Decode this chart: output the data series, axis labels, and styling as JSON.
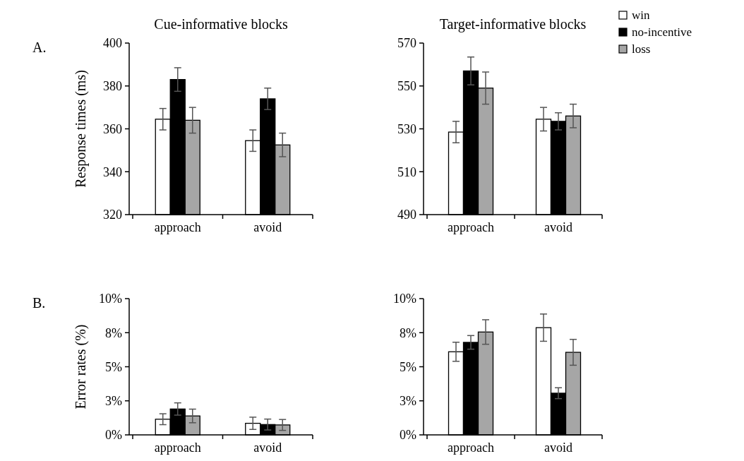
{
  "chart_data": [
    {
      "type": "bar",
      "title": "Cue-informative blocks",
      "ylabel": "Response times (ms)",
      "annotations": [
        "A."
      ],
      "categories": [
        "approach",
        "avoid"
      ],
      "ylim": [
        320,
        400
      ],
      "yticks": [
        320,
        340,
        360,
        380,
        400
      ],
      "legend": false,
      "series": [
        {
          "color": "#ffffff",
          "values": [
            364.5,
            354.5
          ],
          "errors": [
            5,
            5
          ]
        },
        {
          "color": "#000000",
          "values": [
            383,
            374
          ],
          "errors": [
            5.5,
            5
          ]
        },
        {
          "color": "#a6a6a6",
          "values": [
            364,
            352.5
          ],
          "errors": [
            6,
            5.5
          ]
        }
      ]
    },
    {
      "type": "bar",
      "title": "Target-informative blocks",
      "categories": [
        "approach",
        "avoid"
      ],
      "ylim": [
        490,
        570
      ],
      "yticks": [
        490,
        510,
        530,
        550,
        570
      ],
      "legend": "right",
      "series": [
        {
          "name": "win",
          "color": "#ffffff",
          "values": [
            528.5,
            534.5
          ],
          "errors": [
            5,
            5.5
          ]
        },
        {
          "name": "no-incentive",
          "color": "#000000",
          "values": [
            557,
            533.5
          ],
          "errors": [
            6.5,
            4
          ]
        },
        {
          "name": "loss",
          "color": "#a6a6a6",
          "values": [
            549,
            536
          ],
          "errors": [
            7.5,
            5.5
          ]
        }
      ]
    },
    {
      "type": "bar",
      "ylabel": "Error rates (%)",
      "annotations": [
        "B."
      ],
      "categories": [
        "approach",
        "avoid"
      ],
      "ylim": [
        0,
        10
      ],
      "yticks": [
        {
          "value": 0,
          "label": "0%"
        },
        {
          "value": 2.5,
          "label": "3%"
        },
        {
          "value": 5,
          "label": "5%"
        },
        {
          "value": 7.5,
          "label": "8%"
        },
        {
          "value": 10,
          "label": "10%"
        }
      ],
      "legend": false,
      "series": [
        {
          "color": "#ffffff",
          "values": [
            1.15,
            0.85
          ],
          "errors": [
            0.4,
            0.45
          ]
        },
        {
          "color": "#000000",
          "values": [
            1.9,
            0.76
          ],
          "errors": [
            0.45,
            0.4
          ]
        },
        {
          "color": "#a6a6a6",
          "values": [
            1.39,
            0.73
          ],
          "errors": [
            0.5,
            0.4
          ]
        }
      ]
    },
    {
      "type": "bar",
      "categories": [
        "approach",
        "avoid"
      ],
      "ylim": [
        0,
        10
      ],
      "yticks": [
        {
          "value": 0,
          "label": "0%"
        },
        {
          "value": 2.5,
          "label": "3%"
        },
        {
          "value": 5,
          "label": "5%"
        },
        {
          "value": 7.5,
          "label": "8%"
        },
        {
          "value": 10,
          "label": "10%"
        }
      ],
      "legend": false,
      "series": [
        {
          "color": "#ffffff",
          "values": [
            6.1,
            7.87
          ],
          "errors": [
            0.7,
            1.0
          ]
        },
        {
          "color": "#000000",
          "values": [
            6.79,
            3.06
          ],
          "errors": [
            0.5,
            0.4
          ]
        },
        {
          "color": "#a6a6a6",
          "values": [
            7.55,
            6.06
          ],
          "errors": [
            0.9,
            0.95
          ]
        }
      ]
    }
  ]
}
